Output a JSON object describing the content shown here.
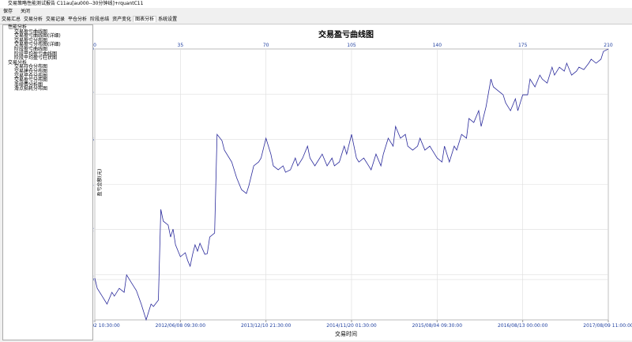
{
  "window": {
    "title": "交易策略性能测试报告 C11au[au000--30分钟线]+rquantC11",
    "toolbar": [
      "保存",
      "关闭"
    ],
    "tabs": [
      "交易汇总",
      "交易分析",
      "交易记录",
      "平仓分析",
      "阶段总结",
      "资产变化",
      "图表分析",
      "系统设置"
    ],
    "tree": [
      {
        "label": "性能分析",
        "children": [
          "交易盈亏曲线图",
          "交易盈亏曲线图(详细)",
          "交易盈亏分布图",
          "交易盈亏分布图(详细)",
          "阶段盈亏曲线图",
          "阶段平均盈亏曲线图",
          "阶段平均盈亏柱状图"
        ]
      },
      {
        "label": "交易分析",
        "children": [
          "交易持仓分布图",
          "交易建仓分布图",
          "交易平仓分布图",
          "交易盈亏分布图",
          "手续费分析图",
          "滑点损耗分布图"
        ]
      }
    ]
  },
  "chart_data": {
    "type": "line",
    "title": "交易盈亏曲线图",
    "x_label": "交易时间",
    "y_label": "盈亏金额(元)",
    "x": [
      0,
      1,
      3,
      5,
      7,
      8,
      10,
      12,
      13,
      15,
      17,
      19,
      20,
      21,
      23,
      24,
      26,
      27,
      28,
      30,
      31,
      32,
      33,
      35,
      37,
      38,
      39,
      40,
      41,
      42,
      43,
      45,
      46,
      47,
      49,
      50,
      52,
      53,
      56,
      58,
      60,
      62,
      63,
      65,
      67,
      68,
      70,
      72,
      73,
      75,
      77,
      78,
      80,
      82,
      83,
      85,
      87,
      88,
      90,
      92,
      93,
      95,
      97,
      98,
      100,
      102,
      103,
      105,
      107,
      108,
      110,
      112,
      113,
      115,
      117,
      118,
      120,
      122,
      123,
      125,
      127,
      128,
      130,
      132,
      133,
      135,
      137,
      138,
      140,
      142,
      143,
      145,
      147,
      148,
      150,
      152,
      153,
      155,
      157,
      158,
      160,
      162,
      163,
      165,
      167,
      168,
      170,
      172,
      173,
      175,
      177,
      178,
      180,
      182,
      183,
      185,
      187,
      188,
      190,
      192,
      193,
      195,
      197,
      198,
      200,
      202,
      203,
      205,
      207,
      208,
      210
    ],
    "series": [
      {
        "name": "盈亏",
        "color": "#2b2b9c",
        "values": [
          1000,
          -6200,
          -11700,
          -17300,
          -9000,
          -11700,
          -6200,
          -9000,
          3300,
          -2300,
          -7800,
          -17300,
          -22900,
          -28400,
          -17300,
          -19000,
          -14500,
          49500,
          41200,
          38400,
          30000,
          35600,
          24500,
          16100,
          18900,
          13300,
          9400,
          17800,
          24500,
          20000,
          25600,
          17800,
          18300,
          30000,
          32800,
          102400,
          98000,
          91300,
          82900,
          71800,
          63400,
          60700,
          66200,
          80200,
          82900,
          85700,
          99700,
          88500,
          80200,
          77400,
          80200,
          75700,
          77400,
          85700,
          80200,
          85700,
          94100,
          85700,
          80200,
          85700,
          88500,
          80200,
          85700,
          80200,
          82900,
          94100,
          88500,
          102400,
          85700,
          82900,
          85700,
          80200,
          77400,
          88500,
          80200,
          88500,
          99700,
          94100,
          108000,
          99700,
          102400,
          94100,
          91300,
          94100,
          99700,
          91300,
          94100,
          91300,
          85700,
          82900,
          94100,
          82900,
          94100,
          91300,
          102400,
          99700,
          113600,
          110800,
          119100,
          108000,
          121900,
          141400,
          135900,
          133100,
          130300,
          124700,
          119100,
          127500,
          119100,
          130300,
          130300,
          141400,
          135900,
          144200,
          141400,
          138600,
          149800,
          144200,
          149800,
          147000,
          152600,
          144200,
          147000,
          149800,
          148100,
          152600,
          155400,
          152600,
          155400,
          160900,
          162600
        ]
      }
    ],
    "xlim": [
      0,
      210
    ],
    "xticks": [
      0,
      35,
      70,
      105,
      140,
      175,
      210
    ],
    "xticks_bottom": [
      {
        "value": 0,
        "label": "2010/02/02 10:30:00"
      },
      {
        "value": 35,
        "label": "2012/06/08 09:30:00"
      },
      {
        "value": 70,
        "label": "2013/12/10 21:30:00"
      },
      {
        "value": 105,
        "label": "2014/11/20 01:30:00"
      },
      {
        "value": 140,
        "label": "2015/08/04 09:30:00"
      },
      {
        "value": 175,
        "label": "2016/08/13 00:00:00"
      },
      {
        "value": 210,
        "label": "2017/08/09 11:00:00"
      }
    ],
    "ylim": [
      -28457.11,
      162640.59
    ],
    "yticks": [
      -28457.11,
      0,
      3392.51,
      35242.12,
      67091.74,
      98941.36,
      130790.97,
      162640.59
    ],
    "grid": true
  }
}
